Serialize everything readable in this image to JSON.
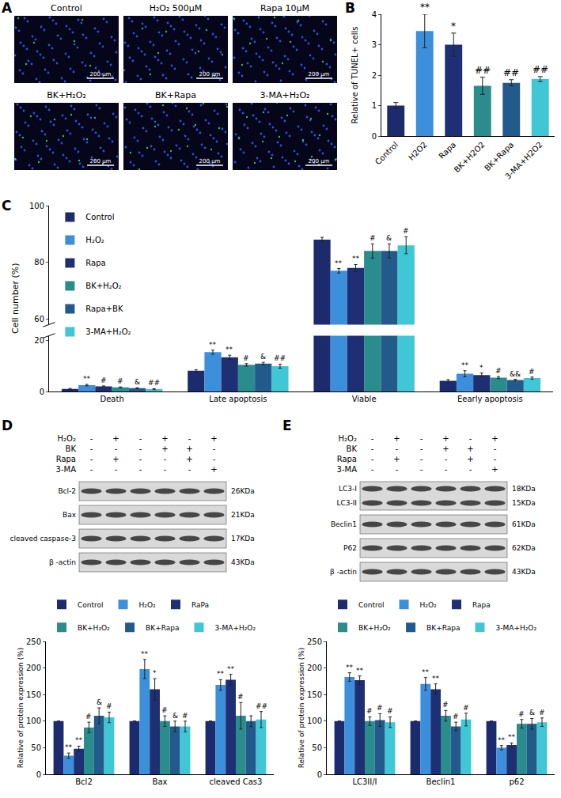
{
  "image_panel": {
    "panel": "A",
    "scale_bar": "200 μm",
    "images": [
      "Control",
      "H₂O₂ 500μM",
      "Rapa 10μM",
      "BK+H₂O₂",
      "BK+Rapa",
      "3-MA+H₂O₂"
    ]
  },
  "blot_panels": [
    {
      "panel": "D",
      "treatments": [
        {
          "name": "H₂O₂",
          "signs": [
            "-",
            "+",
            "-",
            "+",
            "-",
            "+"
          ]
        },
        {
          "name": "BK",
          "signs": [
            "-",
            "-",
            "-",
            "+",
            "+",
            "-"
          ]
        },
        {
          "name": "Rapa",
          "signs": [
            "-",
            "+",
            "-",
            "-",
            "+",
            "-"
          ]
        },
        {
          "name": "3-MA",
          "signs": [
            "-",
            "-",
            "-",
            "-",
            "-",
            "+"
          ]
        }
      ],
      "bands": [
        {
          "labels": [
            "Bcl-2"
          ],
          "sizes": [
            "26KDa"
          ]
        },
        {
          "labels": [
            "Bax"
          ],
          "sizes": [
            "21KDa"
          ]
        },
        {
          "labels": [
            "cleaved caspase-3"
          ],
          "sizes": [
            "17KDa"
          ]
        },
        {
          "labels": [
            "β -actin"
          ],
          "sizes": [
            "43KDa"
          ]
        }
      ]
    },
    {
      "panel": "E",
      "treatments": [
        {
          "name": "H₂O₂",
          "signs": [
            "-",
            "+",
            "-",
            "+",
            "-",
            "+"
          ]
        },
        {
          "name": "BK",
          "signs": [
            "-",
            "-",
            "-",
            "+",
            "+",
            "-"
          ]
        },
        {
          "name": "Rapa",
          "signs": [
            "-",
            "+",
            "-",
            "-",
            "+",
            "-"
          ]
        },
        {
          "name": "3-MA",
          "signs": [
            "-",
            "-",
            "-",
            "-",
            "-",
            "+"
          ]
        }
      ],
      "bands": [
        {
          "labels": [
            "LC3-I",
            "LC3-II"
          ],
          "sizes": [
            "18KDa",
            "15KDa"
          ]
        },
        {
          "labels": [
            "Beclin1"
          ],
          "sizes": [
            "61KDa"
          ]
        },
        {
          "labels": [
            "P62"
          ],
          "sizes": [
            "62KDa"
          ]
        },
        {
          "labels": [
            "β -actin"
          ],
          "sizes": [
            "43KDa"
          ]
        }
      ]
    }
  ],
  "chart_data": [
    {
      "panel": "B",
      "type": "bar",
      "categories": [
        "Control",
        "H2O2",
        "Rapa",
        "BK+H2O2",
        "BK+Rapa",
        "3-MA+H2O2"
      ],
      "values": [
        1.0,
        3.45,
        3.0,
        1.65,
        1.75,
        1.87
      ],
      "errors": [
        0.1,
        0.55,
        0.38,
        0.28,
        0.1,
        0.08
      ],
      "marks": [
        null,
        "**",
        "*",
        "##",
        "##",
        "##"
      ],
      "colors": [
        "#1c2a6e",
        "#3c8fdb",
        "#1f2f73",
        "#2a8c8c",
        "#235a8c",
        "#40c7d5"
      ],
      "y_label": "Relative of TUNEL+ cells",
      "ylim": [
        0,
        4
      ],
      "yticks": [
        0,
        1,
        2,
        3,
        4
      ]
    },
    {
      "panel": "C",
      "type": "bar",
      "categories": [
        "Death",
        "Late apoptosis",
        "Viable",
        "Eearly apoptosis"
      ],
      "series": [
        {
          "name": "Control",
          "color": "#1c2a6e",
          "values": [
            1.0,
            8.2,
            88,
            4.2
          ],
          "errors": [
            0.2,
            0.4,
            0.8,
            0.5
          ],
          "marks": [
            null,
            null,
            null,
            null
          ]
        },
        {
          "name": "H₂O₂",
          "color": "#3c8fdb",
          "values": [
            2.5,
            15.5,
            77,
            7.0
          ],
          "errors": [
            0.3,
            0.8,
            0.8,
            1.2
          ],
          "marks": [
            "**",
            "**",
            "**",
            "**"
          ]
        },
        {
          "name": "Rapa",
          "color": "#1f2f73",
          "values": [
            2.0,
            13.5,
            78,
            6.5
          ],
          "errors": [
            0.2,
            0.8,
            1.2,
            0.8
          ],
          "marks": [
            "#",
            "**",
            "**",
            "*"
          ]
        },
        {
          "name": "BK+H₂O₂",
          "color": "#2a8c8c",
          "values": [
            1.6,
            10.5,
            84,
            5.5
          ],
          "errors": [
            0.2,
            0.5,
            2.5,
            0.4
          ],
          "marks": [
            "#",
            "#",
            "#",
            "#"
          ]
        },
        {
          "name": "Rapa+BK",
          "color": "#235a8c",
          "values": [
            1.3,
            11.0,
            84,
            4.5
          ],
          "errors": [
            0.2,
            0.5,
            2.5,
            0.3
          ],
          "marks": [
            "&",
            "&",
            "&",
            "&&"
          ]
        },
        {
          "name": "3-MA+H₂O₂",
          "color": "#40c7d5",
          "values": [
            0.9,
            10.0,
            86,
            5.3
          ],
          "errors": [
            0.2,
            0.8,
            3.0,
            0.4
          ],
          "marks": [
            "##",
            "##",
            "#",
            "#"
          ]
        }
      ],
      "y_label": "Cell number (%)",
      "ylim": [
        0,
        100
      ],
      "ybreak": [
        22,
        58
      ],
      "yticks": [
        0,
        20,
        60,
        80,
        100
      ],
      "legend": "upper left"
    },
    {
      "panel": "D",
      "type": "bar",
      "categories": [
        "Bcl2",
        "Bax",
        "cleaved Cas3"
      ],
      "series": [
        {
          "name": "Control",
          "color": "#1c2a6e",
          "values": [
            100,
            100,
            100
          ],
          "errors": [
            0,
            0,
            0
          ],
          "marks": [
            null,
            null,
            null
          ]
        },
        {
          "name": "H₂O₂",
          "color": "#3c8fdb",
          "values": [
            35,
            198,
            168
          ],
          "errors": [
            5,
            18,
            10
          ],
          "marks": [
            "**",
            "**",
            "**"
          ]
        },
        {
          "name": "RaPa",
          "color": "#1f2f73",
          "values": [
            48,
            160,
            178
          ],
          "errors": [
            5,
            20,
            10
          ],
          "marks": [
            "**",
            "*",
            "**"
          ]
        },
        {
          "name": "BK+H₂O₂",
          "color": "#2a8c8c",
          "values": [
            88,
            100,
            110
          ],
          "errors": [
            10,
            10,
            25
          ],
          "marks": [
            "#",
            "#",
            "#"
          ]
        },
        {
          "name": "BK+Rapa",
          "color": "#235a8c",
          "values": [
            110,
            90,
            100
          ],
          "errors": [
            15,
            10,
            10
          ],
          "marks": [
            "&",
            "&",
            null
          ]
        },
        {
          "name": "3-MA+H₂O₂",
          "color": "#40c7d5",
          "values": [
            107,
            90,
            103
          ],
          "errors": [
            10,
            10,
            15
          ],
          "marks": [
            "#",
            "#",
            "##"
          ]
        }
      ],
      "y_label": "Relative of protein expression (%)",
      "ylim": [
        0,
        250
      ],
      "yticks": [
        0,
        50,
        100,
        150,
        200,
        250
      ],
      "legend": "top"
    },
    {
      "panel": "E",
      "type": "bar",
      "categories": [
        "LC3II/I",
        "Beclin1",
        "p62"
      ],
      "series": [
        {
          "name": "Control",
          "color": "#1c2a6e",
          "values": [
            100,
            100,
            100
          ],
          "errors": [
            0,
            0,
            0
          ],
          "marks": [
            null,
            null,
            null
          ]
        },
        {
          "name": "H₂O₂",
          "color": "#3c8fdb",
          "values": [
            183,
            170,
            50
          ],
          "errors": [
            8,
            12,
            4
          ],
          "marks": [
            "**",
            "**",
            "**"
          ]
        },
        {
          "name": "Rapa",
          "color": "#1f2f73",
          "values": [
            177,
            160,
            55
          ],
          "errors": [
            8,
            10,
            4
          ],
          "marks": [
            "**",
            "**",
            "**"
          ]
        },
        {
          "name": "BK+H₂O₂",
          "color": "#2a8c8c",
          "values": [
            100,
            110,
            95
          ],
          "errors": [
            8,
            10,
            8
          ],
          "marks": [
            "#",
            "#",
            "#"
          ]
        },
        {
          "name": "BK+Rapa",
          "color": "#235a8c",
          "values": [
            102,
            90,
            95
          ],
          "errors": [
            12,
            8,
            10
          ],
          "marks": [
            "#",
            "#",
            "&"
          ]
        },
        {
          "name": "3-MA+H₂O₂",
          "color": "#40c7d5",
          "values": [
            98,
            103,
            98
          ],
          "errors": [
            10,
            12,
            8
          ],
          "marks": [
            "#",
            "#",
            "#"
          ]
        }
      ],
      "y_label": "Relative of protein expression (%)",
      "ylim": [
        0,
        250
      ],
      "yticks": [
        0,
        50,
        100,
        150,
        200,
        250
      ],
      "legend": "top"
    }
  ]
}
